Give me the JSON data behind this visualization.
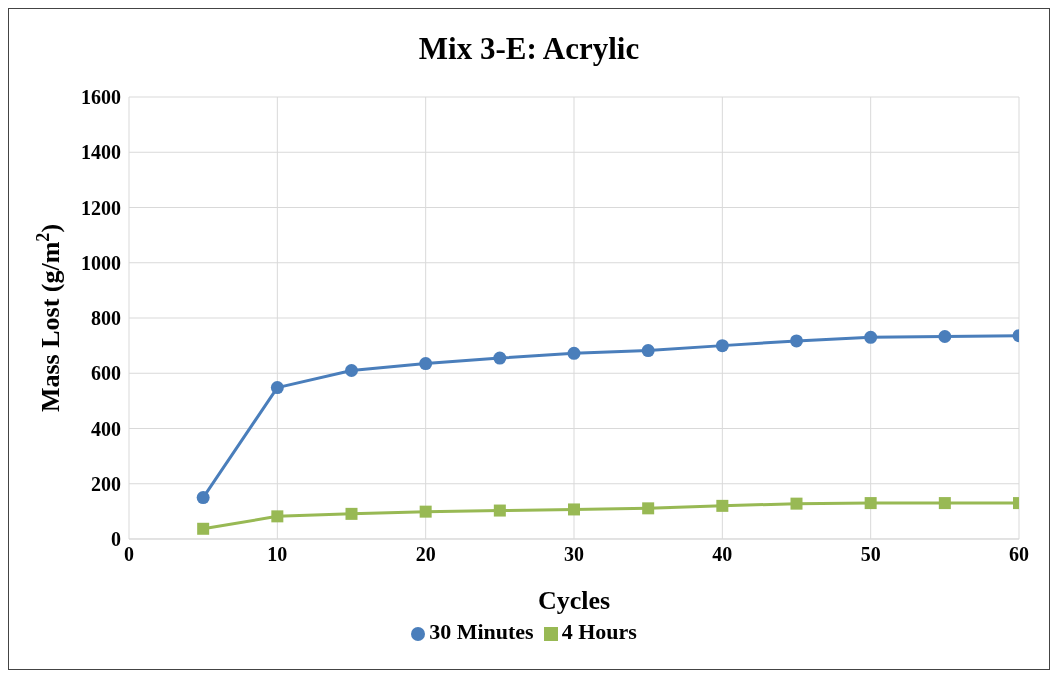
{
  "chart_data": {
    "type": "line",
    "title": "Mix 3-E: Acrylic",
    "xlabel": "Cycles",
    "ylabel": "Mass Lost (g/m$^{2}$)",
    "x": [
      5,
      10,
      15,
      20,
      25,
      30,
      35,
      40,
      45,
      50,
      55,
      60
    ],
    "series": [
      {
        "name": "30 Minutes",
        "color": "#4a7ebb",
        "marker": "circle",
        "values": [
          150,
          548,
          610,
          635,
          655,
          672,
          682,
          700,
          717,
          730,
          733,
          736
        ]
      },
      {
        "name": "4 Hours",
        "color": "#98b954",
        "marker": "square",
        "values": [
          37,
          82,
          91,
          99,
          103,
          107,
          111,
          120,
          128,
          130,
          130,
          130
        ]
      }
    ],
    "xlim": [
      0,
      60
    ],
    "xticks": [
      0,
      10,
      20,
      30,
      40,
      50,
      60
    ],
    "ylim": [
      0,
      1600
    ],
    "yticks": [
      0,
      200,
      400,
      600,
      800,
      1000,
      1200,
      1400,
      1600
    ],
    "grid": true,
    "legend": "bottom"
  }
}
